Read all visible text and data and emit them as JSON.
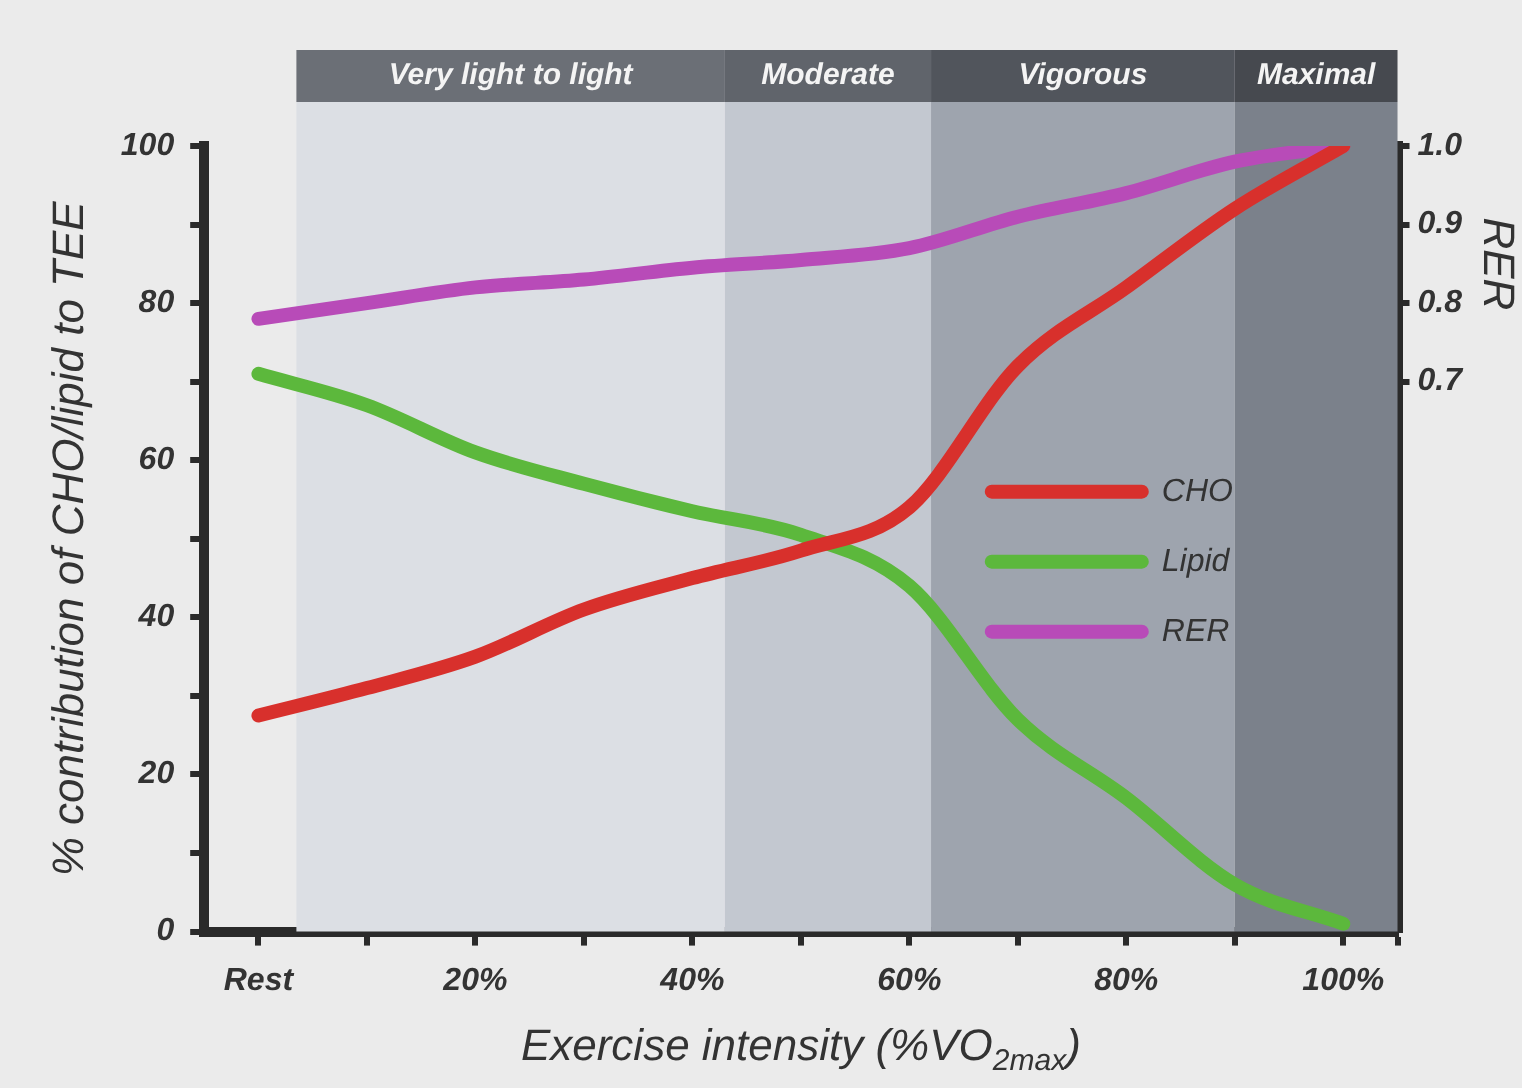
{
  "chart_data": {
    "type": "line",
    "xlabel": "Exercise intensity (%VO$_{2max}$)",
    "ylabel": "% contribution of CHO/lipid to TEE",
    "y2label": "RER",
    "x": [
      0,
      10,
      20,
      30,
      40,
      50,
      60,
      70,
      80,
      90,
      100
    ],
    "series": [
      {
        "name": "CHO",
        "color": "#d8302c",
        "values": [
          27.5,
          31,
          35,
          41,
          45,
          48.5,
          54,
          72,
          82,
          92,
          100
        ]
      },
      {
        "name": "Lipid",
        "color": "#5cb83c",
        "values": [
          71,
          67,
          61,
          57,
          53.5,
          50.5,
          44,
          27,
          17,
          6,
          1
        ]
      },
      {
        "name": "RER",
        "color": "#b84bb8",
        "axis": "y2",
        "values": [
          0.78,
          0.8,
          0.82,
          0.83,
          0.845,
          0.855,
          0.87,
          0.91,
          0.94,
          0.98,
          1.0
        ]
      }
    ],
    "xlim": [
      -5,
      105
    ],
    "xticks": [
      {
        "value": 0,
        "label": "Rest"
      },
      {
        "value": 10,
        "label": null
      },
      {
        "value": 20,
        "label": "20%"
      },
      {
        "value": 30,
        "label": null
      },
      {
        "value": 40,
        "label": "40%"
      },
      {
        "value": 50,
        "label": null
      },
      {
        "value": 60,
        "label": "60%"
      },
      {
        "value": 70,
        "label": null
      },
      {
        "value": 80,
        "label": "80%"
      },
      {
        "value": 90,
        "label": null
      },
      {
        "value": 100,
        "label": "100%"
      },
      {
        "value": 105,
        "label": null
      }
    ],
    "ylim": [
      0,
      100
    ],
    "yticks": [
      0,
      {
        "value": 10,
        "label": null
      },
      20,
      {
        "value": 30,
        "label": null
      },
      40,
      {
        "value": 50,
        "label": null
      },
      60,
      {
        "value": 70,
        "label": null
      },
      80,
      {
        "value": 90,
        "label": null
      },
      100
    ],
    "y2lim": [
      0,
      1
    ],
    "y2ticks": [
      {
        "value": 0.7,
        "label": "0.7"
      },
      {
        "value": 0.8,
        "label": "0.8"
      },
      {
        "value": 0.9,
        "label": "0.9"
      },
      {
        "value": 1.0,
        "label": "1.0"
      }
    ],
    "bands": [
      {
        "axis": "x",
        "from": 3.5,
        "to": 43,
        "label": "Very light to light",
        "color": "#dcdfe4"
      },
      {
        "axis": "x",
        "from": 43,
        "to": 62,
        "label": "Moderate",
        "color": "#c3c8d0"
      },
      {
        "axis": "x",
        "from": 62,
        "to": 90,
        "label": "Vigorous",
        "color": "#9ea4ae"
      },
      {
        "axis": "x",
        "from": 90,
        "to": 105,
        "label": "Maximal",
        "color": "#7b818b"
      }
    ],
    "legend": "right",
    "grid": false,
    "marker": "none",
    "line_style": "solid"
  }
}
